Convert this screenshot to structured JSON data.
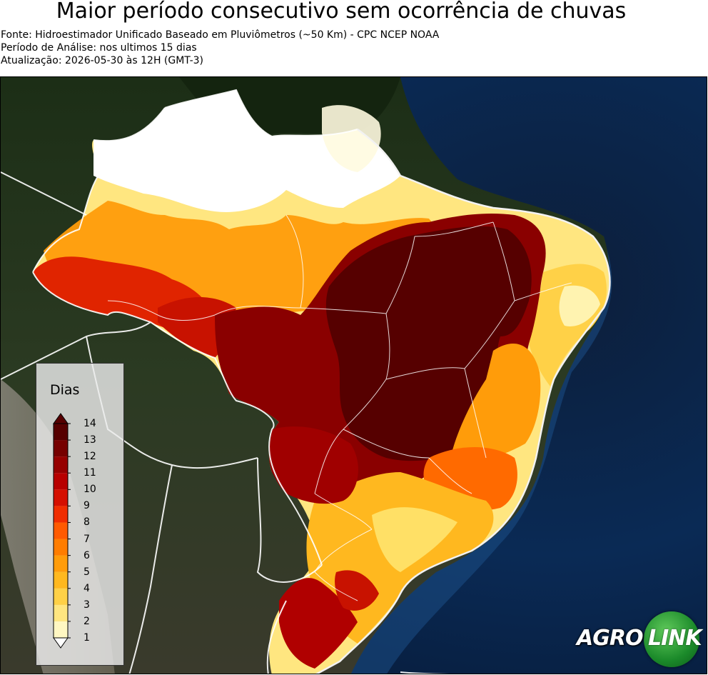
{
  "header": {
    "title": "Maior período consecutivo sem ocorrência de chuvas",
    "source": "Fonte: Hidroestimador Unificado Baseado em Pluviômetros (~50 Km) - CPC NCEP NOAA",
    "period": "Período de Análise: nos ultimos 15 dias",
    "update": "Atualização: 2026-05-30 às 12H (GMT-3)"
  },
  "legend": {
    "title": "Dias",
    "levels": [
      {
        "label": "1",
        "color": "#ffffff"
      },
      {
        "label": "2",
        "color": "#fff7c2"
      },
      {
        "label": "3",
        "color": "#ffe680"
      },
      {
        "label": "4",
        "color": "#ffd147"
      },
      {
        "label": "5",
        "color": "#ffb81f"
      },
      {
        "label": "6",
        "color": "#ff9c0a"
      },
      {
        "label": "7",
        "color": "#ff7d00"
      },
      {
        "label": "8",
        "color": "#ff5a00"
      },
      {
        "label": "9",
        "color": "#f02d00"
      },
      {
        "label": "10",
        "color": "#d50f00"
      },
      {
        "label": "11",
        "color": "#b80000"
      },
      {
        "label": "12",
        "color": "#960000"
      },
      {
        "label": "13",
        "color": "#760000"
      },
      {
        "label": "14",
        "color": "#560000"
      }
    ]
  },
  "logo": {
    "part1": "AGRO",
    "part2": "LINK"
  }
}
